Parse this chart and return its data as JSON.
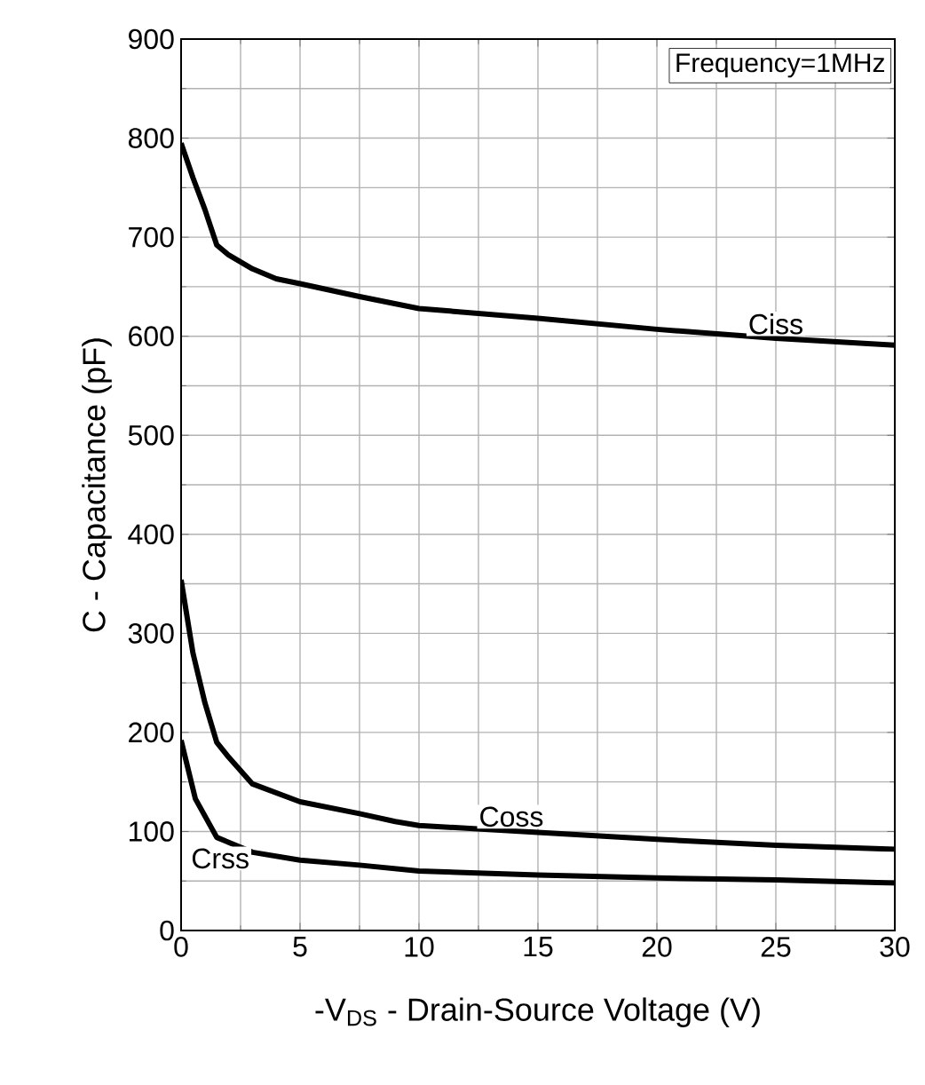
{
  "chart_data": {
    "type": "line",
    "xlabel": "-V$_{DS}$ - Drain-Source Voltage (V)",
    "ylabel": "C - Capacitance (pF)",
    "annotations": [
      "Frequency=1MHz"
    ],
    "xlim": [
      0,
      30
    ],
    "ylim": [
      0,
      900
    ],
    "xticks": [
      0,
      5,
      10,
      15,
      20,
      25,
      30
    ],
    "yticks": [
      0,
      100,
      200,
      300,
      400,
      500,
      600,
      700,
      800,
      900
    ],
    "grid": true,
    "legend": false,
    "marker": "none",
    "line_style": "solid",
    "series": [
      {
        "name": "Ciss",
        "color": "#000000",
        "x": [
          0,
          0.5,
          1,
          1.5,
          2,
          3,
          4,
          5,
          7.5,
          10,
          15,
          20,
          25,
          30
        ],
        "values": [
          795,
          760,
          728,
          692,
          682,
          668,
          658,
          653,
          640,
          628,
          618,
          607,
          598,
          591
        ]
      },
      {
        "name": "Coss",
        "color": "#000000",
        "x": [
          0,
          0.5,
          1,
          1.5,
          2,
          3,
          5,
          7.5,
          9,
          10,
          15,
          20,
          25,
          30
        ],
        "values": [
          354,
          280,
          230,
          190,
          175,
          148,
          130,
          118,
          110,
          106,
          99,
          92,
          86,
          82
        ]
      },
      {
        "name": "Crss",
        "color": "#000000",
        "x": [
          0,
          0.6,
          1.5,
          3,
          5,
          7.5,
          10,
          15,
          20,
          25,
          30
        ],
        "values": [
          192,
          133,
          94,
          79,
          71,
          66,
          60,
          56,
          53,
          51,
          48
        ]
      }
    ]
  }
}
